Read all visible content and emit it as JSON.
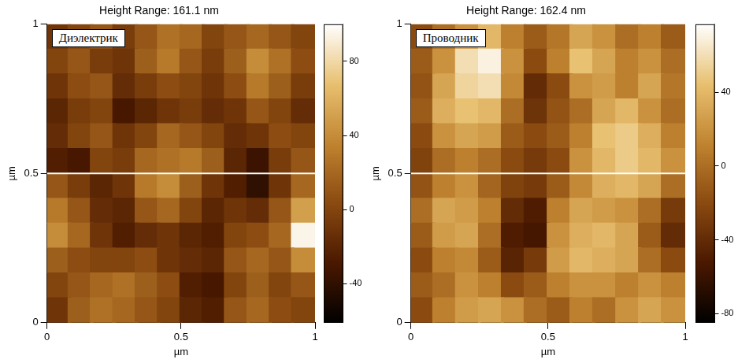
{
  "chart_data": [
    {
      "type": "heatmap",
      "title": "Height Range: 161.1 nm",
      "annotation": "Диэлектрик",
      "x_label": "µm",
      "y_label": "µm",
      "xlim": [
        0,
        1
      ],
      "ylim": [
        0,
        1
      ],
      "xticks": [
        0,
        0.5,
        1
      ],
      "yticks": [
        0,
        0.5,
        1
      ],
      "x": [
        0.042,
        0.125,
        0.208,
        0.292,
        0.375,
        0.458,
        0.542,
        0.625,
        0.708,
        0.792,
        0.875,
        0.958
      ],
      "y": [
        0.958,
        0.875,
        0.792,
        0.708,
        0.625,
        0.542,
        0.458,
        0.375,
        0.292,
        0.208,
        0.125,
        0.042
      ],
      "cells": [
        [
          -10,
          0,
          10,
          -5,
          10,
          25,
          20,
          0,
          10,
          20,
          10,
          0
        ],
        [
          0,
          10,
          -5,
          -10,
          15,
          30,
          10,
          -5,
          15,
          40,
          25,
          5
        ],
        [
          -10,
          5,
          10,
          -15,
          -5,
          5,
          0,
          -10,
          5,
          30,
          15,
          -5
        ],
        [
          -20,
          -5,
          0,
          -30,
          -20,
          -10,
          -5,
          -15,
          -10,
          10,
          0,
          -15
        ],
        [
          -15,
          0,
          10,
          -10,
          0,
          20,
          10,
          0,
          -15,
          -10,
          5,
          0
        ],
        [
          -25,
          -30,
          0,
          -5,
          20,
          25,
          30,
          15,
          -20,
          -35,
          -5,
          10
        ],
        [
          10,
          -5,
          -20,
          -10,
          30,
          40,
          15,
          -10,
          -25,
          -40,
          -10,
          20
        ],
        [
          30,
          10,
          -15,
          -20,
          10,
          20,
          0,
          -20,
          -10,
          -15,
          10,
          50
        ],
        [
          40,
          20,
          -10,
          -25,
          -15,
          -10,
          -20,
          -25,
          0,
          5,
          20,
          95
        ],
        [
          15,
          5,
          0,
          0,
          5,
          -10,
          -15,
          -20,
          10,
          20,
          10,
          40
        ],
        [
          0,
          10,
          20,
          25,
          15,
          5,
          -25,
          -30,
          0,
          15,
          0,
          10
        ],
        [
          -10,
          15,
          25,
          20,
          10,
          0,
          -20,
          -25,
          10,
          20,
          5,
          0
        ]
      ],
      "colorbar": {
        "range": [
          -61,
          100
        ],
        "ticks": [
          -40,
          0,
          40,
          80
        ]
      },
      "section_y": 0.5
    },
    {
      "type": "heatmap",
      "title": "Height Range: 162.4 nm",
      "annotation": "Проводник",
      "x_label": "µm",
      "y_label": "µm",
      "xlim": [
        0,
        1
      ],
      "ylim": [
        0,
        1
      ],
      "xticks": [
        0,
        0.5,
        1
      ],
      "yticks": [
        0,
        0.5,
        1
      ],
      "x": [
        0.042,
        0.125,
        0.208,
        0.292,
        0.375,
        0.458,
        0.542,
        0.625,
        0.708,
        0.792,
        0.875,
        0.958
      ],
      "y": [
        0.958,
        0.875,
        0.792,
        0.708,
        0.625,
        0.542,
        0.458,
        0.375,
        0.292,
        0.208,
        0.125,
        0.042
      ],
      "cells": [
        [
          -20,
          0,
          20,
          40,
          10,
          -10,
          5,
          30,
          20,
          0,
          10,
          -10
        ],
        [
          -10,
          20,
          60,
          70,
          20,
          -20,
          10,
          45,
          30,
          10,
          20,
          0
        ],
        [
          -15,
          30,
          55,
          60,
          15,
          -40,
          -20,
          20,
          25,
          10,
          30,
          5
        ],
        [
          -10,
          35,
          45,
          40,
          0,
          -35,
          -15,
          0,
          30,
          40,
          20,
          0
        ],
        [
          -20,
          20,
          30,
          25,
          -10,
          -20,
          -10,
          10,
          45,
          50,
          35,
          10
        ],
        [
          -25,
          0,
          10,
          0,
          -20,
          -30,
          -20,
          20,
          40,
          50,
          40,
          20
        ],
        [
          -15,
          10,
          20,
          -5,
          -25,
          -30,
          -10,
          15,
          35,
          40,
          30,
          0
        ],
        [
          0,
          30,
          25,
          10,
          -40,
          -50,
          10,
          30,
          25,
          20,
          0,
          -30
        ],
        [
          -10,
          25,
          30,
          0,
          -50,
          -55,
          20,
          35,
          40,
          30,
          -10,
          -40
        ],
        [
          -20,
          10,
          15,
          -10,
          -45,
          -30,
          25,
          40,
          35,
          30,
          0,
          -20
        ],
        [
          -10,
          0,
          20,
          10,
          -20,
          -10,
          10,
          20,
          20,
          10,
          20,
          10
        ],
        [
          -20,
          10,
          25,
          30,
          20,
          0,
          -10,
          10,
          0,
          20,
          30,
          20
        ]
      ],
      "colorbar": {
        "range": [
          -85,
          77
        ],
        "ticks": [
          -80,
          -40,
          0,
          40
        ]
      },
      "section_y": 0.5
    }
  ]
}
